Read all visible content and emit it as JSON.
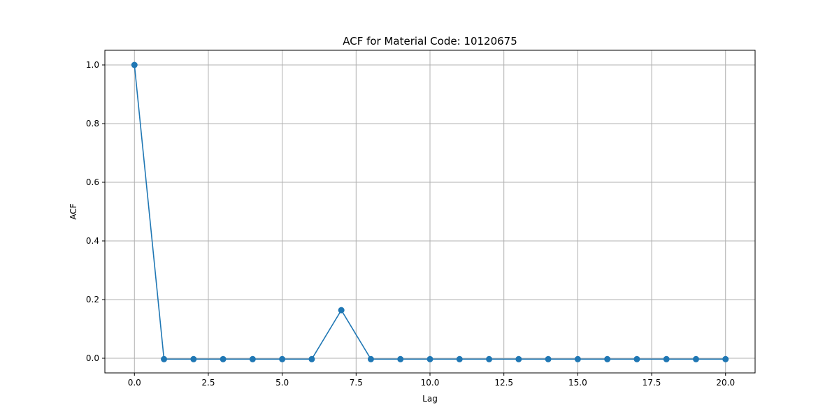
{
  "chart_data": {
    "type": "line",
    "title": "ACF for Material Code: 10120675",
    "xlabel": "Lag",
    "ylabel": "ACF",
    "xlim": [
      -1.0,
      21.0
    ],
    "ylim": [
      -0.05,
      1.05
    ],
    "grid": true,
    "marker": "circle",
    "xticks": [
      0.0,
      2.5,
      5.0,
      7.5,
      10.0,
      12.5,
      15.0,
      17.5,
      20.0
    ],
    "xtick_labels": [
      "0.0",
      "2.5",
      "5.0",
      "7.5",
      "10.0",
      "12.5",
      "15.0",
      "17.5",
      "20.0"
    ],
    "yticks": [
      0.0,
      0.2,
      0.4,
      0.6,
      0.8,
      1.0
    ],
    "ytick_labels": [
      "0.0",
      "0.2",
      "0.4",
      "0.6",
      "0.8",
      "1.0"
    ],
    "series": [
      {
        "color": "#1f77b4",
        "x": [
          0,
          1,
          2,
          3,
          4,
          5,
          6,
          7,
          8,
          9,
          10,
          11,
          12,
          13,
          14,
          15,
          16,
          17,
          18,
          19,
          20
        ],
        "values": [
          1.0,
          -0.003,
          -0.003,
          -0.003,
          -0.003,
          -0.003,
          -0.003,
          0.164,
          -0.003,
          -0.003,
          -0.003,
          -0.003,
          -0.003,
          -0.003,
          -0.003,
          -0.003,
          -0.003,
          -0.003,
          -0.003,
          -0.003,
          -0.003
        ]
      }
    ]
  }
}
